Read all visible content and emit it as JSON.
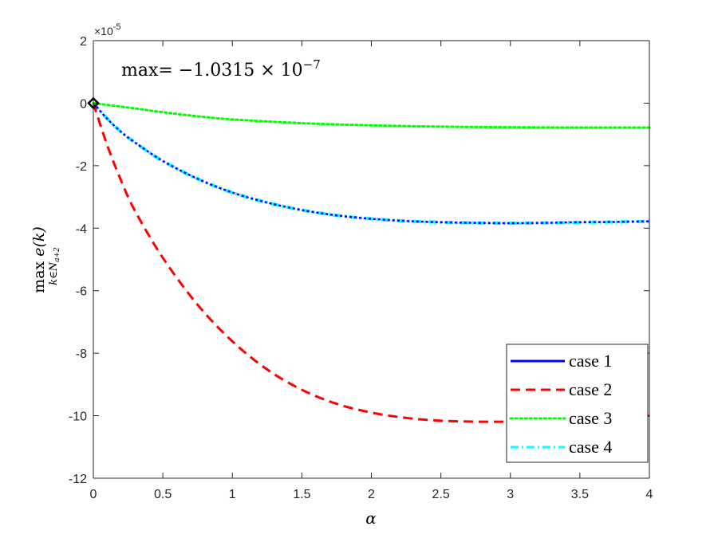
{
  "chart_data": {
    "type": "line",
    "title": "",
    "xlabel": "α",
    "ylabel": {
      "main": "max",
      "func": "e(k)",
      "sub": "k∈N",
      "subsub": "a+2"
    },
    "xlim": [
      0,
      4
    ],
    "ylim": [
      -12,
      2
    ],
    "y_exponent": "×10",
    "y_exponent_power": "-5",
    "xticks": [
      "0",
      "0.5",
      "1",
      "1.5",
      "2",
      "2.5",
      "3",
      "3.5",
      "4"
    ],
    "xtick_values": [
      0,
      0.5,
      1,
      1.5,
      2,
      2.5,
      3,
      3.5,
      4
    ],
    "yticks": [
      "2",
      "0",
      "-2",
      "-4",
      "-6",
      "-8",
      "-10",
      "-12"
    ],
    "ytick_values": [
      2,
      0,
      -2,
      -4,
      -6,
      -8,
      -10,
      -12
    ],
    "grid": false,
    "legend_position": "bottom-right",
    "annotation": {
      "text_main": "max= −1.0315 × 10",
      "text_power": "−7",
      "marker_point": {
        "x": 0,
        "y": 0
      }
    },
    "series": [
      {
        "name": "case 1",
        "color": "#0000ff",
        "style": "solid",
        "x": [
          0,
          0.1,
          0.2,
          0.3,
          0.5,
          0.75,
          1,
          1.25,
          1.5,
          1.75,
          2,
          2.25,
          2.5,
          2.75,
          3,
          3.25,
          3.5,
          3.75,
          4
        ],
        "y": [
          0,
          -0.5,
          -0.92,
          -1.26,
          -1.85,
          -2.42,
          -2.86,
          -3.18,
          -3.42,
          -3.59,
          -3.7,
          -3.77,
          -3.81,
          -3.83,
          -3.84,
          -3.83,
          -3.81,
          -3.8,
          -3.78
        ]
      },
      {
        "name": "case 2",
        "color": "#ff0000",
        "style": "dashed",
        "x": [
          0,
          0.1,
          0.2,
          0.3,
          0.5,
          0.75,
          1,
          1.25,
          1.5,
          1.75,
          2,
          2.25,
          2.5,
          2.75,
          3,
          3.25,
          3.5,
          3.75,
          4
        ],
        "y": [
          0,
          -1.35,
          -2.48,
          -3.45,
          -4.95,
          -6.45,
          -7.62,
          -8.52,
          -9.17,
          -9.62,
          -9.9,
          -10.07,
          -10.16,
          -10.19,
          -10.19,
          -10.16,
          -10.11,
          -10.05,
          -10.0
        ]
      },
      {
        "name": "case 3",
        "color": "#00ff00",
        "style": "dotted",
        "x": [
          0,
          0.25,
          0.5,
          0.75,
          1,
          1.5,
          2,
          2.5,
          3,
          3.5,
          4
        ],
        "y": [
          0,
          -0.14,
          -0.29,
          -0.42,
          -0.52,
          -0.64,
          -0.71,
          -0.75,
          -0.77,
          -0.78,
          -0.78
        ]
      },
      {
        "name": "case 4",
        "color": "#00ffff",
        "style": "dashdot",
        "x": [
          0,
          0.1,
          0.2,
          0.3,
          0.5,
          0.75,
          1,
          1.25,
          1.5,
          1.75,
          2,
          2.25,
          2.5,
          2.75,
          3,
          3.25,
          3.5,
          3.75,
          4
        ],
        "y": [
          0,
          -0.5,
          -0.92,
          -1.26,
          -1.85,
          -2.42,
          -2.86,
          -3.18,
          -3.42,
          -3.59,
          -3.7,
          -3.77,
          -3.81,
          -3.83,
          -3.84,
          -3.83,
          -3.81,
          -3.8,
          -3.78
        ]
      }
    ]
  }
}
